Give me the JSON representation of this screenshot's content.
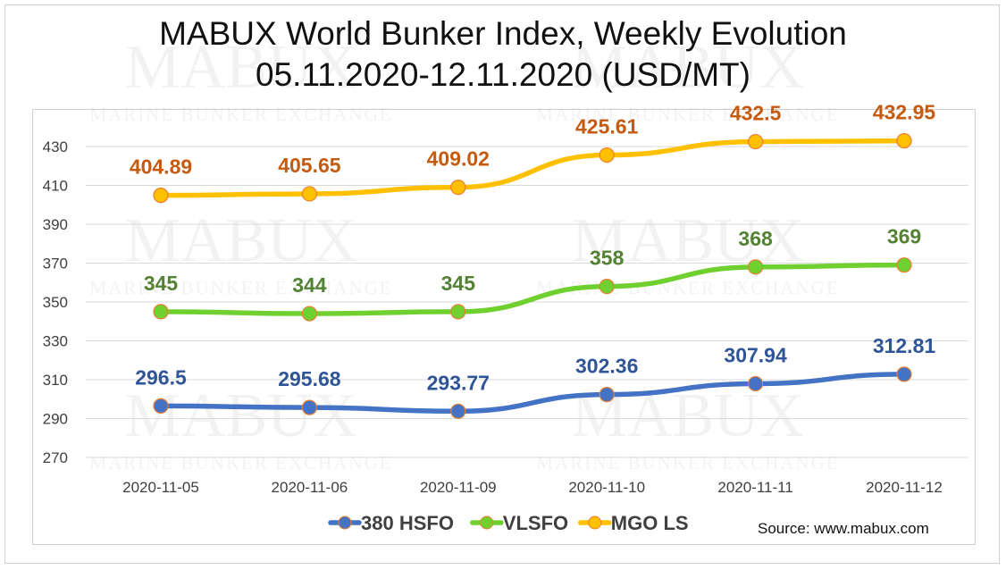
{
  "chart_data": {
    "type": "line",
    "title": "MABUX World Bunker Index, Weekly Evolution",
    "subtitle": "05.11.2020-12.11.2020 (USD/MT)",
    "categories": [
      "2020-11-05",
      "2020-11-06",
      "2020-11-09",
      "2020-11-10",
      "2020-11-11",
      "2020-11-12"
    ],
    "series": [
      {
        "name": "380 HSFO",
        "color": "#4472c4",
        "label_color": "#2f5597",
        "values": [
          296.5,
          295.68,
          293.77,
          302.36,
          307.94,
          312.81
        ],
        "labels": [
          "296.5",
          "295.68",
          "293.77",
          "302.36",
          "307.94",
          "312.81"
        ]
      },
      {
        "name": "VLSFO",
        "color": "#70d02f",
        "label_color": "#548235",
        "values": [
          345,
          344,
          345,
          358,
          368,
          369
        ],
        "labels": [
          "345",
          "344",
          "345",
          "358",
          "368",
          "369"
        ]
      },
      {
        "name": "MGO LS",
        "color": "#ffc000",
        "label_color": "#c55a11",
        "values": [
          404.89,
          405.65,
          409.02,
          425.61,
          432.5,
          432.95
        ],
        "labels": [
          "404.89",
          "405.65",
          "409.02",
          "425.61",
          "432.5",
          "432.95"
        ]
      }
    ],
    "yticks": [
      270,
      290,
      310,
      330,
      350,
      370,
      390,
      410,
      430
    ],
    "ylim": [
      270,
      440
    ],
    "grid": true,
    "legend_position": "bottom"
  },
  "source": "Source: www.mabux.com",
  "watermark": {
    "text": "MABUX",
    "subtext": "MARINE BUNKER EXCHANGE"
  }
}
